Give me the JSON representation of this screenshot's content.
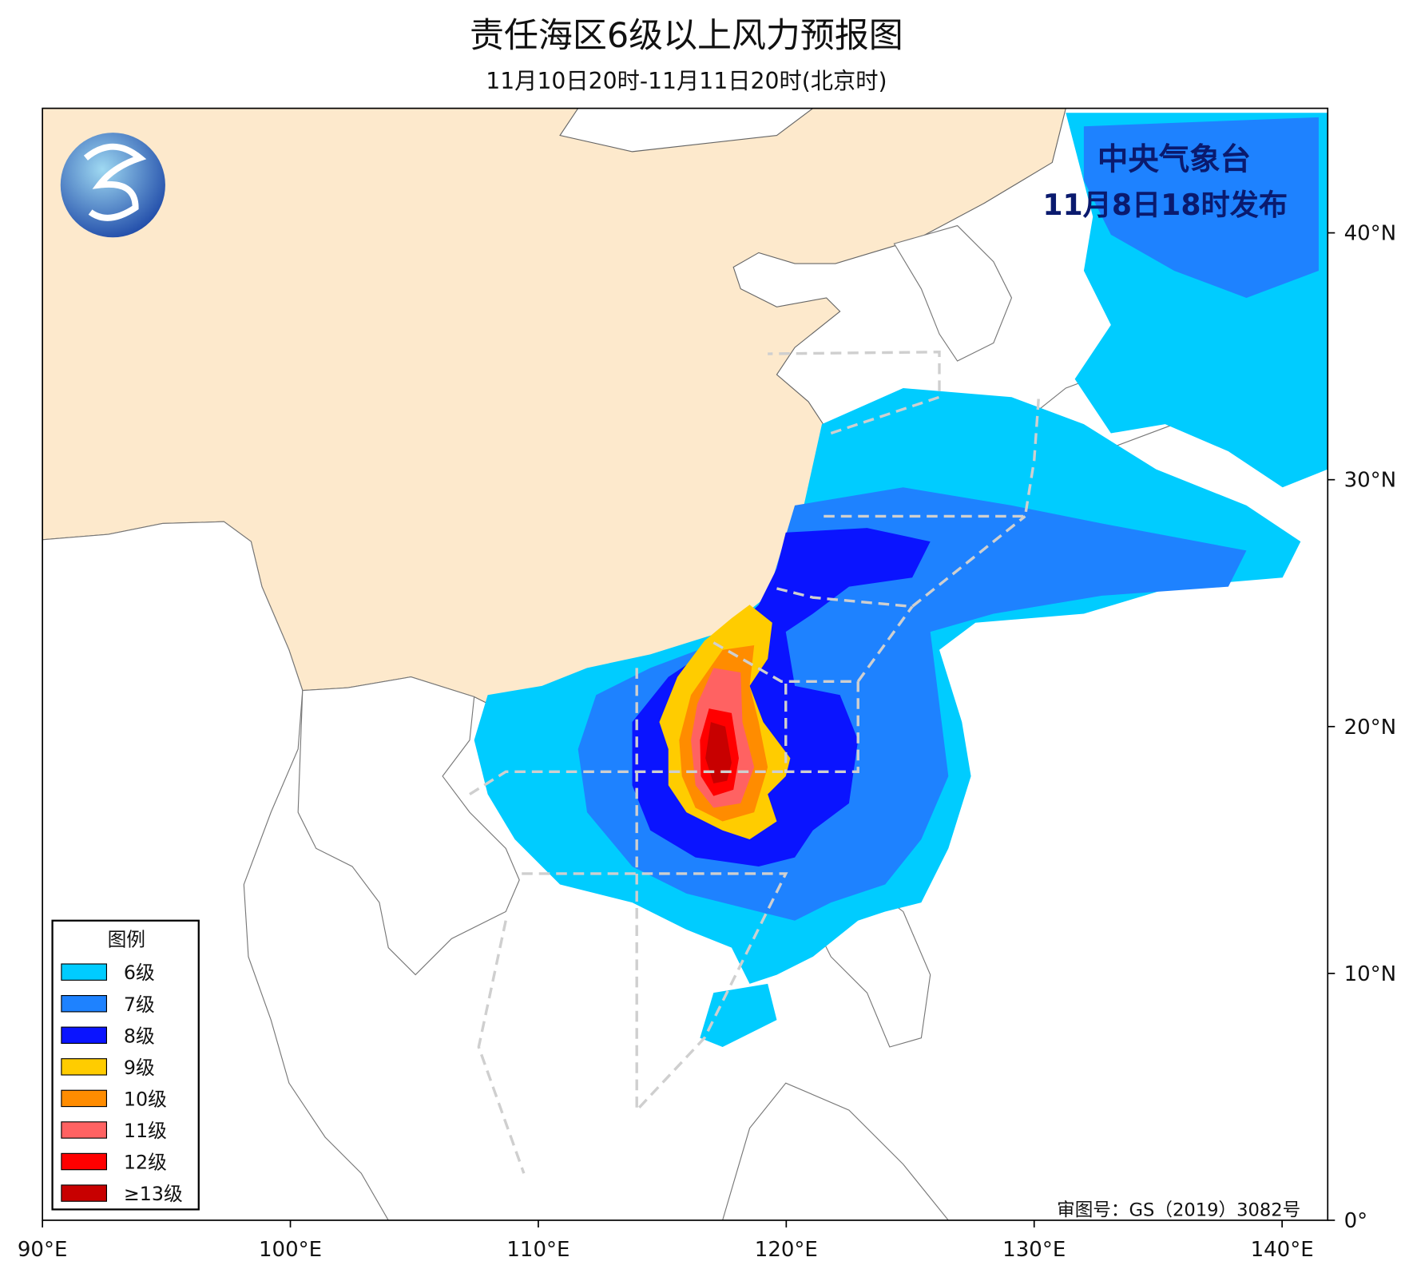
{
  "header": {
    "title": "责任海区6级以上风力预报图",
    "subtitle": "11月10日20时-11月11日20时(北京时)"
  },
  "issuer": {
    "name": "中央气象台",
    "time": "11月8日18时发布"
  },
  "legend": {
    "title": "图例",
    "items": [
      {
        "label": "6级",
        "color": "#00ccff"
      },
      {
        "label": "7级",
        "color": "#1e82ff"
      },
      {
        "label": "8级",
        "color": "#0a14ff"
      },
      {
        "label": "9级",
        "color": "#ffcc00"
      },
      {
        "label": "10级",
        "color": "#ff8c00"
      },
      {
        "label": "11级",
        "color": "#ff6262"
      },
      {
        "label": "12级",
        "color": "#ff0000"
      },
      {
        "label": "≥13级",
        "color": "#c80000"
      }
    ]
  },
  "axes": {
    "lon_labels": [
      "90°E",
      "100°E",
      "110°E",
      "120°E",
      "130°E",
      "140°E"
    ],
    "lat_labels": [
      "0°",
      "10°N",
      "20°N",
      "30°N",
      "40°N"
    ]
  },
  "footer": {
    "approval": "审图号：GS（2019）3082号"
  }
}
